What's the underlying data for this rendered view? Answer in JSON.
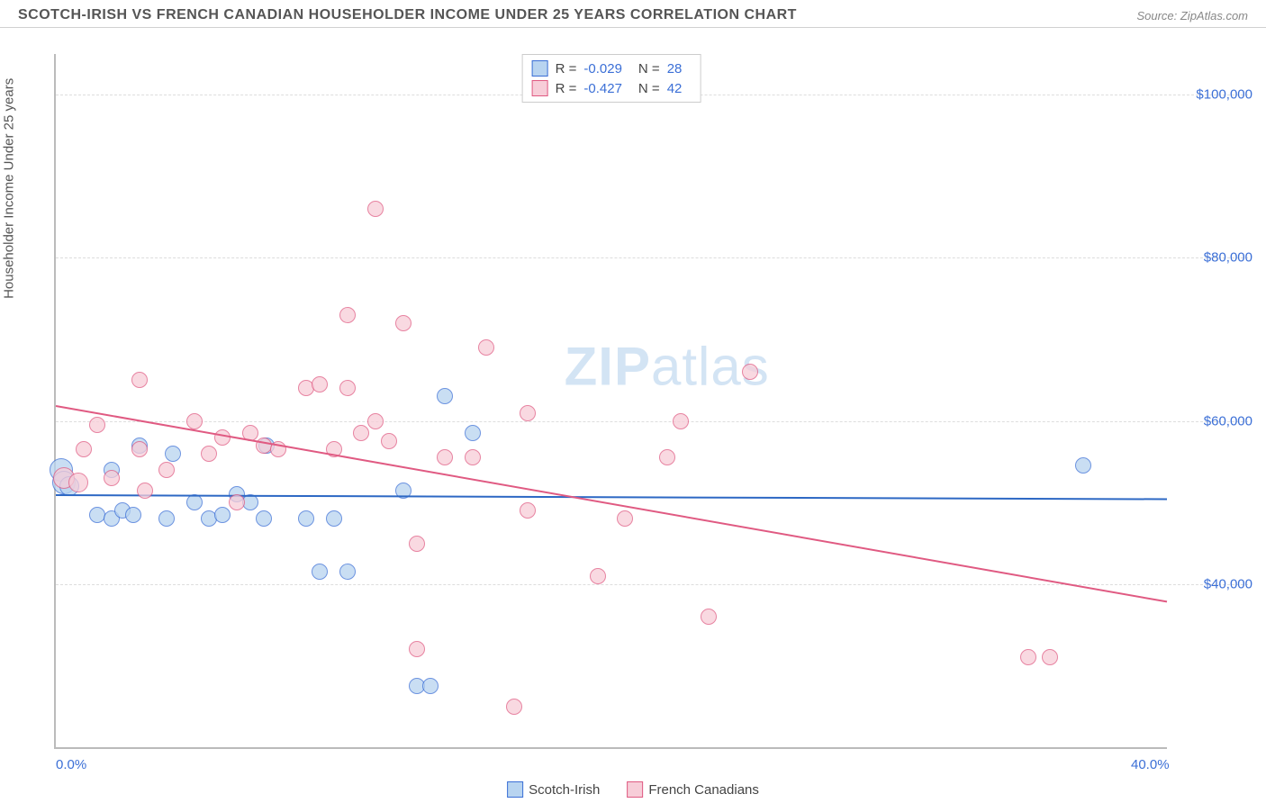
{
  "header": {
    "title": "SCOTCH-IRISH VS FRENCH CANADIAN HOUSEHOLDER INCOME UNDER 25 YEARS CORRELATION CHART",
    "source": "Source: ZipAtlas.com"
  },
  "ylabel": "Householder Income Under 25 years",
  "watermark_a": "ZIP",
  "watermark_b": "atlas",
  "chart": {
    "type": "scatter",
    "background_color": "#ffffff",
    "grid_color": "#dddddd",
    "axis_color": "#bbbbbb",
    "xlim": [
      0,
      40
    ],
    "ylim": [
      20000,
      105000
    ],
    "xticks": [
      {
        "value": 0,
        "label": "0.0%"
      },
      {
        "value": 40,
        "label": "40.0%"
      }
    ],
    "yticks": [
      {
        "value": 40000,
        "label": "$40,000"
      },
      {
        "value": 60000,
        "label": "$60,000"
      },
      {
        "value": 80000,
        "label": "$80,000"
      },
      {
        "value": 100000,
        "label": "$100,000"
      }
    ],
    "series": [
      {
        "name": "Scotch-Irish",
        "fill": "#b8d4f0",
        "stroke": "#3b6fd6",
        "marker_radius": 9,
        "stats": {
          "R_label": "R =",
          "R_value": "-0.029",
          "N_label": "N =",
          "N_value": "28"
        },
        "trend": {
          "y_at_xmin": 51000,
          "y_at_xmax": 50500,
          "color": "#2d68c4",
          "width": 2
        },
        "points": [
          {
            "x": 0.2,
            "y": 54000,
            "r": 13
          },
          {
            "x": 0.3,
            "y": 52500,
            "r": 13
          },
          {
            "x": 0.5,
            "y": 52000,
            "r": 11
          },
          {
            "x": 1.5,
            "y": 48500
          },
          {
            "x": 2.0,
            "y": 48000
          },
          {
            "x": 2.0,
            "y": 54000
          },
          {
            "x": 2.4,
            "y": 49000
          },
          {
            "x": 2.8,
            "y": 48500
          },
          {
            "x": 3.0,
            "y": 57000
          },
          {
            "x": 4.0,
            "y": 48000
          },
          {
            "x": 4.2,
            "y": 56000
          },
          {
            "x": 5.0,
            "y": 50000
          },
          {
            "x": 5.5,
            "y": 48000
          },
          {
            "x": 6.0,
            "y": 48500
          },
          {
            "x": 6.5,
            "y": 51000
          },
          {
            "x": 7.0,
            "y": 50000
          },
          {
            "x": 7.5,
            "y": 48000
          },
          {
            "x": 7.6,
            "y": 57000
          },
          {
            "x": 9.0,
            "y": 48000
          },
          {
            "x": 9.5,
            "y": 41500
          },
          {
            "x": 10.0,
            "y": 48000
          },
          {
            "x": 10.5,
            "y": 41500
          },
          {
            "x": 12.5,
            "y": 51500
          },
          {
            "x": 13.0,
            "y": 27500
          },
          {
            "x": 13.5,
            "y": 27500
          },
          {
            "x": 14.0,
            "y": 63000
          },
          {
            "x": 15.0,
            "y": 58500
          },
          {
            "x": 37.0,
            "y": 54500
          }
        ]
      },
      {
        "name": "French Canadians",
        "fill": "#f7cdd8",
        "stroke": "#e05a82",
        "marker_radius": 9,
        "stats": {
          "R_label": "R =",
          "R_value": "-0.427",
          "N_label": "N =",
          "N_value": "42"
        },
        "trend": {
          "y_at_xmin": 62000,
          "y_at_xmax": 38000,
          "color": "#e05a82",
          "width": 2
        },
        "points": [
          {
            "x": 0.3,
            "y": 53000,
            "r": 12
          },
          {
            "x": 0.8,
            "y": 52500,
            "r": 11
          },
          {
            "x": 1.0,
            "y": 56500
          },
          {
            "x": 1.5,
            "y": 59500
          },
          {
            "x": 2.0,
            "y": 53000
          },
          {
            "x": 3.0,
            "y": 65000
          },
          {
            "x": 3.0,
            "y": 56500
          },
          {
            "x": 3.2,
            "y": 51500
          },
          {
            "x": 4.0,
            "y": 54000
          },
          {
            "x": 5.0,
            "y": 60000
          },
          {
            "x": 5.5,
            "y": 56000
          },
          {
            "x": 6.0,
            "y": 58000
          },
          {
            "x": 6.5,
            "y": 50000
          },
          {
            "x": 7.0,
            "y": 58500
          },
          {
            "x": 7.5,
            "y": 57000
          },
          {
            "x": 8.0,
            "y": 56500
          },
          {
            "x": 9.0,
            "y": 64000
          },
          {
            "x": 9.5,
            "y": 64500
          },
          {
            "x": 10.0,
            "y": 56500
          },
          {
            "x": 10.5,
            "y": 64000
          },
          {
            "x": 10.5,
            "y": 73000
          },
          {
            "x": 11.0,
            "y": 58500
          },
          {
            "x": 11.5,
            "y": 60000
          },
          {
            "x": 11.5,
            "y": 86000
          },
          {
            "x": 12.0,
            "y": 57500
          },
          {
            "x": 12.5,
            "y": 72000
          },
          {
            "x": 13.0,
            "y": 45000
          },
          {
            "x": 13.0,
            "y": 32000
          },
          {
            "x": 14.0,
            "y": 55500
          },
          {
            "x": 15.0,
            "y": 55500
          },
          {
            "x": 15.5,
            "y": 69000
          },
          {
            "x": 16.5,
            "y": 25000
          },
          {
            "x": 17.0,
            "y": 49000
          },
          {
            "x": 17.0,
            "y": 61000
          },
          {
            "x": 19.5,
            "y": 41000
          },
          {
            "x": 20.5,
            "y": 48000
          },
          {
            "x": 22.0,
            "y": 55500
          },
          {
            "x": 22.5,
            "y": 60000
          },
          {
            "x": 23.5,
            "y": 36000
          },
          {
            "x": 25.0,
            "y": 66000
          },
          {
            "x": 35.0,
            "y": 31000
          },
          {
            "x": 35.8,
            "y": 31000
          }
        ]
      }
    ]
  },
  "bottom_legend": [
    {
      "label": "Scotch-Irish",
      "fill": "#b8d4f0",
      "stroke": "#3b6fd6"
    },
    {
      "label": "French Canadians",
      "fill": "#f7cdd8",
      "stroke": "#e05a82"
    }
  ]
}
